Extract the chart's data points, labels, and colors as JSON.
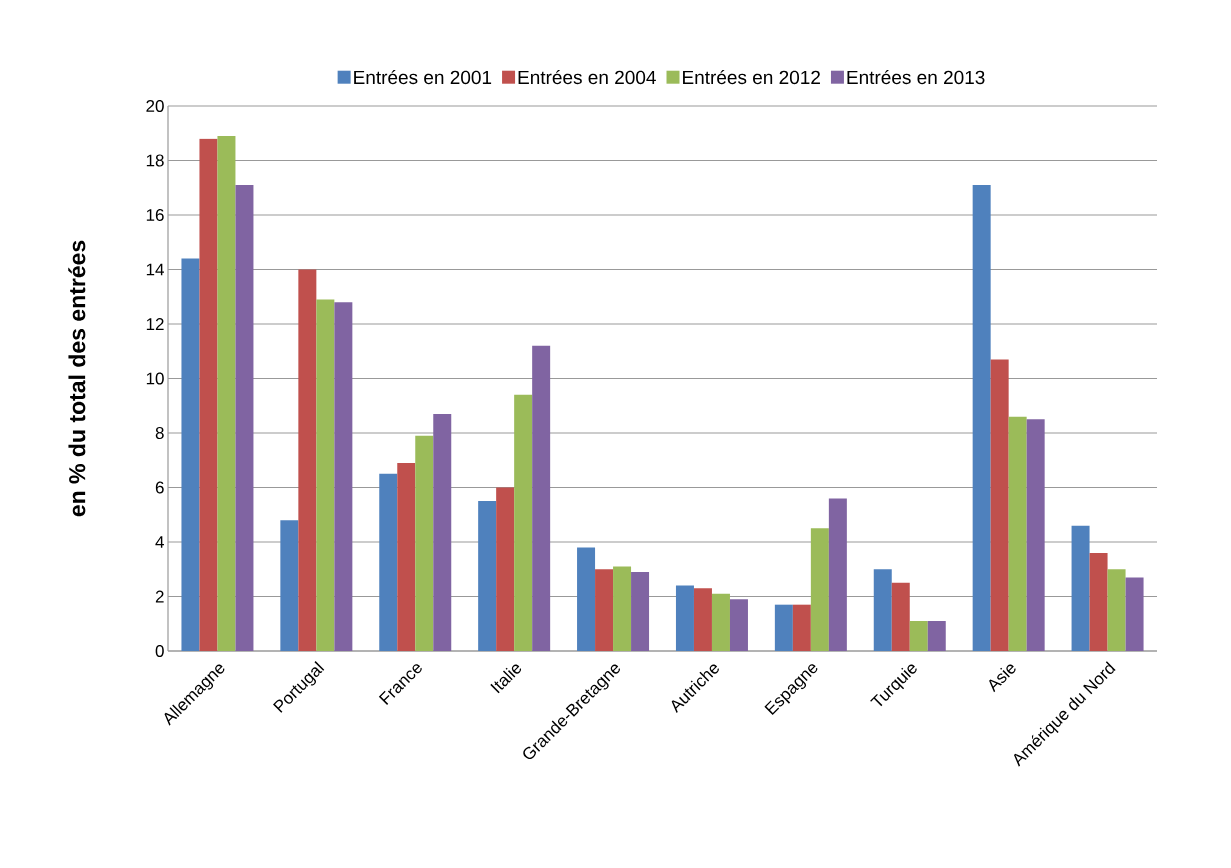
{
  "chart_data": {
    "type": "bar",
    "categories": [
      "Allemagne",
      "Portugal",
      "France",
      "Italie",
      "Grande-Bretagne",
      "Autriche",
      "Espagne",
      "Turquie",
      "Asie",
      "Amérique du Nord"
    ],
    "series": [
      {
        "name": "Entrées en 2001",
        "color": "#4f81bd",
        "values": [
          14.4,
          4.8,
          6.5,
          5.5,
          3.8,
          2.4,
          1.7,
          3.0,
          17.1,
          4.6
        ]
      },
      {
        "name": "Entrées en 2004",
        "color": "#c0504d",
        "values": [
          18.8,
          14.0,
          6.9,
          6.0,
          3.0,
          2.3,
          1.7,
          2.5,
          10.7,
          3.6
        ]
      },
      {
        "name": "Entrées en 2012",
        "color": "#9bbb59",
        "values": [
          18.9,
          12.9,
          7.9,
          9.4,
          3.1,
          2.1,
          4.5,
          1.1,
          8.6,
          3.0
        ]
      },
      {
        "name": "Entrées en 2013",
        "color": "#8064a2",
        "values": [
          17.1,
          12.8,
          8.7,
          11.2,
          2.9,
          1.9,
          5.6,
          1.1,
          8.5,
          2.7
        ]
      }
    ],
    "ylabel": "en % du total des entrées",
    "ylim": [
      0,
      20
    ],
    "yticks": [
      0,
      2,
      4,
      6,
      8,
      10,
      12,
      14,
      16,
      18,
      20
    ],
    "grid": "y",
    "legend": "top"
  }
}
